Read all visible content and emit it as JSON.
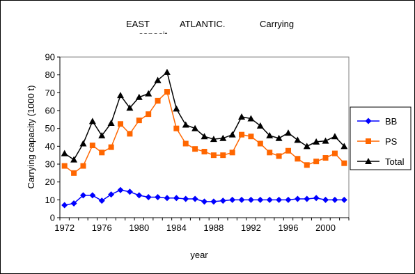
{
  "chart_data": {
    "type": "line",
    "title_parts": [
      "EAST",
      "ATLANTIC.",
      "Carrying",
      "capacit"
    ],
    "xlabel": "year",
    "ylabel": "Carrying capacity (1000 t)",
    "ylim": [
      0,
      90
    ],
    "yticks": [
      0,
      10,
      20,
      30,
      40,
      50,
      60,
      70,
      80,
      90
    ],
    "xlim": [
      1972,
      2002
    ],
    "xticks": [
      1972,
      1976,
      1980,
      1984,
      1988,
      1992,
      1996,
      2000
    ],
    "legend_position": "right",
    "x": [
      1972,
      1973,
      1974,
      1975,
      1976,
      1977,
      1978,
      1979,
      1980,
      1981,
      1982,
      1983,
      1984,
      1985,
      1986,
      1987,
      1988,
      1989,
      1990,
      1991,
      1992,
      1993,
      1994,
      1995,
      1996,
      1997,
      1998,
      1999,
      2000,
      2001,
      2002
    ],
    "series": [
      {
        "name": "BB",
        "color": "#0000ff",
        "marker": "diamond",
        "values": [
          7,
          8,
          12.5,
          12.5,
          9.5,
          13,
          15.5,
          14.5,
          12.5,
          11.5,
          11.5,
          11,
          11,
          10.5,
          10.5,
          9,
          9,
          9.5,
          10,
          10,
          10,
          10,
          10,
          10,
          10,
          10.5,
          10.5,
          11,
          10,
          10,
          10
        ]
      },
      {
        "name": "PS",
        "color": "#ff6600",
        "marker": "square",
        "values": [
          29,
          25,
          29,
          40.5,
          36.5,
          39.5,
          52.5,
          47,
          54.5,
          58,
          65.5,
          70.5,
          50,
          41.5,
          38.5,
          37,
          35,
          35,
          36.5,
          46.5,
          45.5,
          41.5,
          36.5,
          34.5,
          37.5,
          33,
          29.5,
          31.5,
          33.5,
          36,
          30.5
        ]
      },
      {
        "name": "Total",
        "color": "#000000",
        "marker": "triangle",
        "values": [
          36,
          32.5,
          41.5,
          54,
          46,
          53,
          68.5,
          61.5,
          67.5,
          69.5,
          77,
          81.5,
          61,
          52,
          50,
          45.5,
          44,
          44.5,
          46.5,
          56.5,
          55.5,
          51.5,
          46,
          44.5,
          47.5,
          43.5,
          40,
          42.5,
          43,
          45.5,
          40
        ]
      }
    ]
  }
}
